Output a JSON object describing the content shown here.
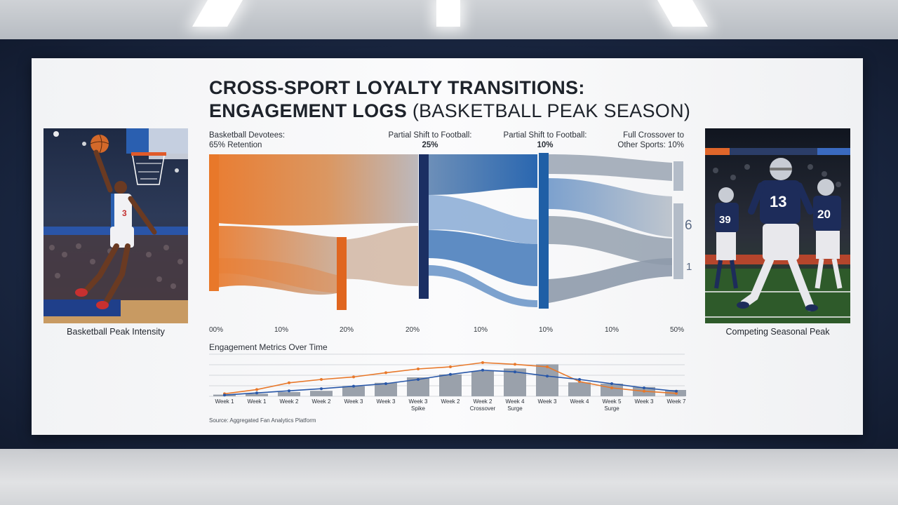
{
  "title": {
    "line1": "CROSS-SPORT LOYALTY TRANSITIONS:",
    "line2_bold": "ENGAGEMENT LOGS",
    "line2_light": " (BASKETBALL PEAK SEASON)"
  },
  "left_photo": {
    "caption": "Basketball Peak Intensity",
    "jersey_number": "3"
  },
  "right_photo": {
    "caption": "Competing Seasonal Peak",
    "jersey_numbers": [
      "39",
      "13",
      "20"
    ]
  },
  "colors": {
    "basketball_orange": "#e8782a",
    "football_blue": "#1f5fa6",
    "navy": "#1b2f63",
    "other_gray": "#8e9aab"
  },
  "chart_data": [
    {
      "type": "sankey",
      "title": "",
      "stages": [
        {
          "label": "Basketball Devotees:",
          "value_label": "65% Retention"
        },
        {
          "label": "Partial Shift to Football:",
          "value_label": "25%"
        },
        {
          "label": "Partial Shift to Football:",
          "value_label": "10%"
        },
        {
          "label": "Full Crossover to",
          "value_label": "Other Sports: 10%"
        }
      ],
      "axis_ticks": [
        "00%",
        "10%",
        "20%",
        "20%",
        "10%",
        "10%",
        "10%",
        "50%"
      ],
      "side_labels": [
        "6",
        "1"
      ]
    },
    {
      "type": "bar+line",
      "title": "Engagement Metrics Over Time",
      "categories": [
        "Week 1",
        "Week 1",
        "Week 2",
        "Week 2",
        "Week 3",
        "Week 3",
        "Week 3 Spike",
        "Week 2",
        "Week 2 Crossover",
        "Week 4 Surge",
        "Week 3",
        "Week 4",
        "Week 5 Surge",
        "Week 3",
        "Week 7"
      ],
      "series": [
        {
          "type": "bar",
          "values": [
            4,
            6,
            10,
            13,
            24,
            32,
            45,
            52,
            60,
            66,
            76,
            33,
            30,
            22,
            15
          ]
        },
        {
          "type": "line",
          "color": "orange",
          "values": [
            6,
            16,
            32,
            40,
            46,
            56,
            65,
            70,
            80,
            76,
            70,
            35,
            20,
            12,
            7
          ]
        },
        {
          "type": "line",
          "color": "blue",
          "values": [
            3,
            8,
            13,
            18,
            24,
            30,
            40,
            52,
            62,
            58,
            48,
            40,
            30,
            20,
            12
          ]
        }
      ],
      "ylim": [
        0,
        100
      ],
      "grid": true
    }
  ],
  "source": "Source: Aggregated Fan Analytics Platform"
}
